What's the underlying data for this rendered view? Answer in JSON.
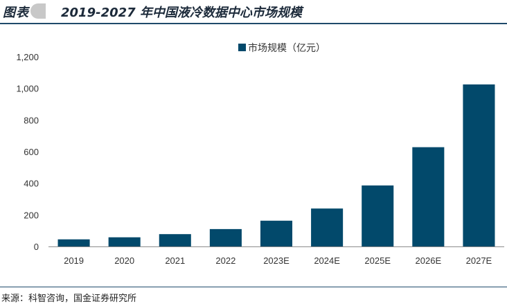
{
  "header": {
    "figure_label": "图表",
    "title": "2019-2027 年中国液冷数据中心市场规模"
  },
  "source": "来源：科智咨询，国金证券研究所",
  "chart_data": {
    "type": "bar",
    "categories": [
      "2019",
      "2020",
      "2021",
      "2022",
      "2023E",
      "2024E",
      "2025E",
      "2026E",
      "2027E"
    ],
    "series": [
      {
        "name": "市场规模（亿元）",
        "values": [
          45,
          58,
          78,
          110,
          163,
          240,
          386,
          628,
          1025
        ]
      }
    ],
    "ylim": [
      0,
      1200
    ],
    "yticks": [
      0,
      200,
      400,
      600,
      800,
      1000,
      1200
    ],
    "ytick_labels": [
      "0",
      "200",
      "400",
      "600",
      "800",
      "1,000",
      "1,200"
    ],
    "grid": false,
    "legend": "top-center",
    "colors": {
      "bar": "#02496b",
      "axis": "#8c8c8c",
      "rule": "#1f4a6b"
    }
  }
}
